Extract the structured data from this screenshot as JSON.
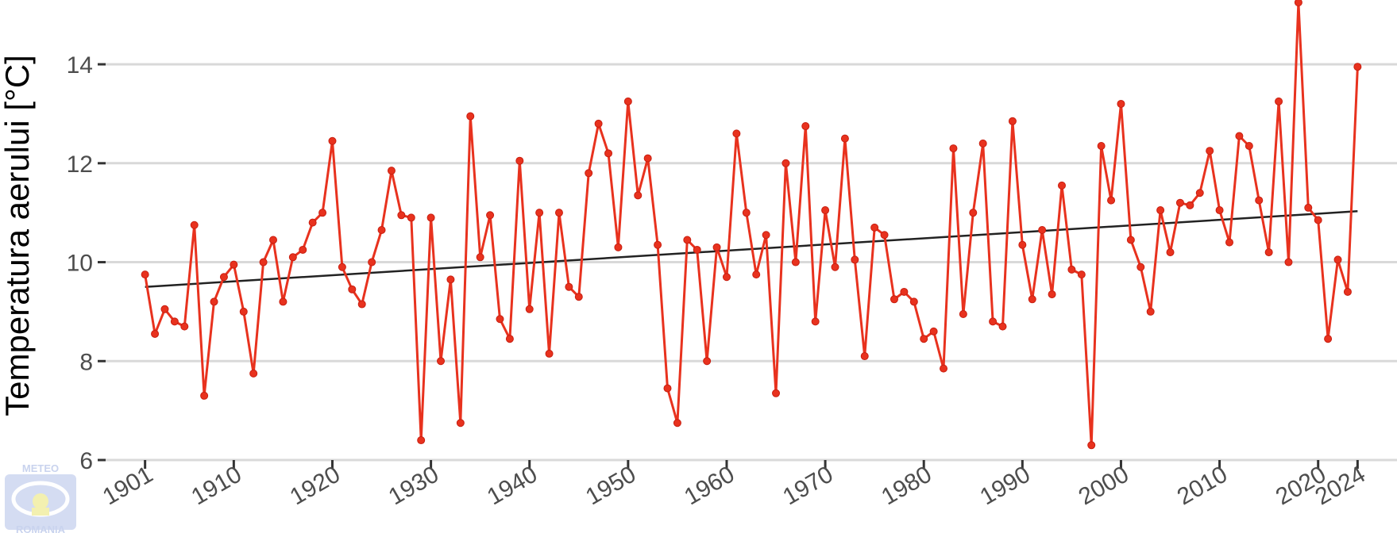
{
  "chart_data": {
    "type": "line",
    "ylabel": "Temperatura aerului [°C]",
    "xlabel": "",
    "title": "",
    "xlim": [
      1897,
      2028
    ],
    "ylim": [
      6,
      15.3
    ],
    "yticks": [
      6,
      8,
      10,
      12,
      14
    ],
    "xticks": [
      1901,
      1910,
      1920,
      1930,
      1940,
      1950,
      1960,
      1970,
      1980,
      1990,
      2000,
      2010,
      2020,
      2024
    ],
    "grid": "horizontal",
    "colors": {
      "series": "#e8321e",
      "trend": "#222222",
      "grid": "#d9d9d9",
      "ticks": "#4d4d4d"
    },
    "series": [
      {
        "x": [
          1901,
          1902,
          1903,
          1904,
          1905,
          1906,
          1907,
          1908,
          1909,
          1910,
          1911,
          1912,
          1913,
          1914,
          1915,
          1916,
          1917,
          1918,
          1919,
          1920,
          1921,
          1922,
          1923,
          1924,
          1925,
          1926,
          1927,
          1928,
          1929,
          1930,
          1931,
          1932,
          1933,
          1934,
          1935,
          1936,
          1937,
          1938,
          1939,
          1940,
          1941,
          1942,
          1943,
          1944,
          1945,
          1946,
          1947,
          1948,
          1949,
          1950,
          1951,
          1952,
          1953,
          1954,
          1955,
          1956,
          1957,
          1958,
          1959,
          1960,
          1961,
          1962,
          1963,
          1964,
          1965,
          1966,
          1967,
          1968,
          1969,
          1970,
          1971,
          1972,
          1973,
          1974,
          1975,
          1976,
          1977,
          1978,
          1979,
          1980,
          1981,
          1982,
          1983,
          1984,
          1985,
          1986,
          1987,
          1988,
          1989,
          1990,
          1991,
          1992,
          1993,
          1994,
          1995,
          1996,
          1997,
          1998,
          1999,
          2000,
          2001,
          2002,
          2003,
          2004,
          2005,
          2006,
          2007,
          2008,
          2009,
          2010,
          2011,
          2012,
          2013,
          2014,
          2015,
          2016,
          2017,
          2018,
          2019,
          2020,
          2021,
          2022,
          2023,
          2024
        ],
        "y": [
          9.75,
          8.55,
          9.05,
          8.8,
          8.7,
          10.75,
          7.3,
          9.2,
          9.7,
          9.95,
          9.0,
          7.75,
          10.0,
          10.45,
          9.2,
          10.1,
          10.25,
          10.8,
          11.0,
          12.45,
          9.9,
          9.45,
          9.15,
          10.0,
          10.65,
          11.85,
          10.95,
          10.9,
          6.4,
          10.9,
          8.0,
          9.65,
          6.75,
          12.95,
          10.1,
          10.95,
          8.85,
          8.45,
          12.05,
          9.05,
          11.0,
          8.15,
          11.0,
          9.5,
          9.3,
          11.8,
          12.8,
          12.2,
          10.3,
          13.25,
          11.35,
          12.1,
          10.35,
          7.45,
          6.75,
          10.45,
          10.25,
          8.0,
          10.3,
          9.7,
          12.6,
          11.0,
          9.75,
          10.55,
          7.35,
          12.0,
          10.0,
          12.75,
          8.8,
          11.05,
          9.9,
          12.5,
          10.05,
          8.1,
          10.7,
          10.55,
          9.25,
          9.4,
          9.2,
          8.45,
          8.6,
          7.85,
          12.3,
          8.95,
          11.0,
          12.4,
          8.8,
          8.7,
          12.85,
          10.35,
          9.25,
          10.65,
          9.35,
          11.55,
          9.85,
          9.75,
          6.3,
          12.35,
          11.25,
          13.2,
          10.45,
          9.9,
          9.0,
          11.05,
          10.2,
          11.2,
          11.15,
          11.4,
          12.25,
          11.05,
          10.4,
          12.55,
          12.35,
          11.25,
          10.2,
          13.25,
          10.0,
          15.25,
          11.1,
          10.85,
          8.45,
          10.05,
          9.4,
          13.95
        ]
      }
    ],
    "trend": {
      "x": [
        1901,
        2024
      ],
      "y": [
        9.5,
        11.03
      ]
    }
  },
  "logo": {
    "line1": "METEO",
    "line2": "ROMANIA"
  }
}
